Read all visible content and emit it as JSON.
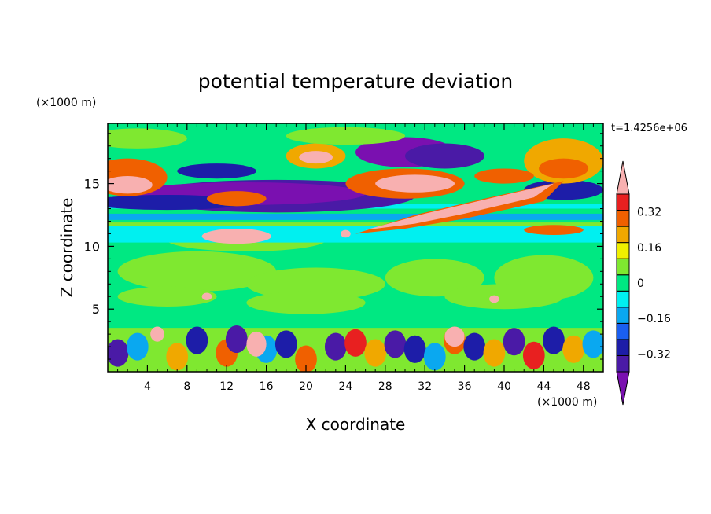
{
  "chart_data": {
    "type": "heatmap",
    "title": "potential temperature deviation",
    "xlabel": "X coordinate",
    "ylabel": "Z coordinate",
    "x_unit": "(×1000 m)",
    "y_unit": "(×1000 m)",
    "time_label": "t=1.4256e+06",
    "xlim": [
      0,
      50
    ],
    "ylim": [
      0,
      19.8
    ],
    "x_ticks": [
      "4",
      "8",
      "12",
      "16",
      "20",
      "24",
      "28",
      "32",
      "36",
      "40",
      "44",
      "48"
    ],
    "y_ticks": [
      "5",
      "10",
      "15"
    ],
    "colorbar": {
      "levels": [
        -0.4,
        -0.32,
        -0.24,
        -0.16,
        -0.08,
        0,
        0.08,
        0.16,
        0.24,
        0.32,
        0.4
      ],
      "labels": [
        "0.32",
        "0.16",
        "0",
        "−0.16",
        "−0.32"
      ],
      "colors_bottom_to_top": [
        "#7a10b0",
        "#4a1aa6",
        "#1d1da8",
        "#1a5ff0",
        "#0aa8f0",
        "#00f0f0",
        "#00e882",
        "#7fe830",
        "#f0f000",
        "#f0a800",
        "#f06000",
        "#e82020",
        "#f8b0b0"
      ]
    },
    "palette": {
      "pink": "#f8b0b0",
      "red": "#e82020",
      "orange": "#f06000",
      "amber": "#f0a800",
      "yellow": "#f0f000",
      "lime": "#7fe830",
      "green": "#00e882",
      "cyan": "#00f0f0",
      "sky": "#0aa8f0",
      "blue": "#1a5ff0",
      "navy": "#1d1da8",
      "indigo": "#4a1aa6",
      "purple": "#7a10b0"
    }
  }
}
